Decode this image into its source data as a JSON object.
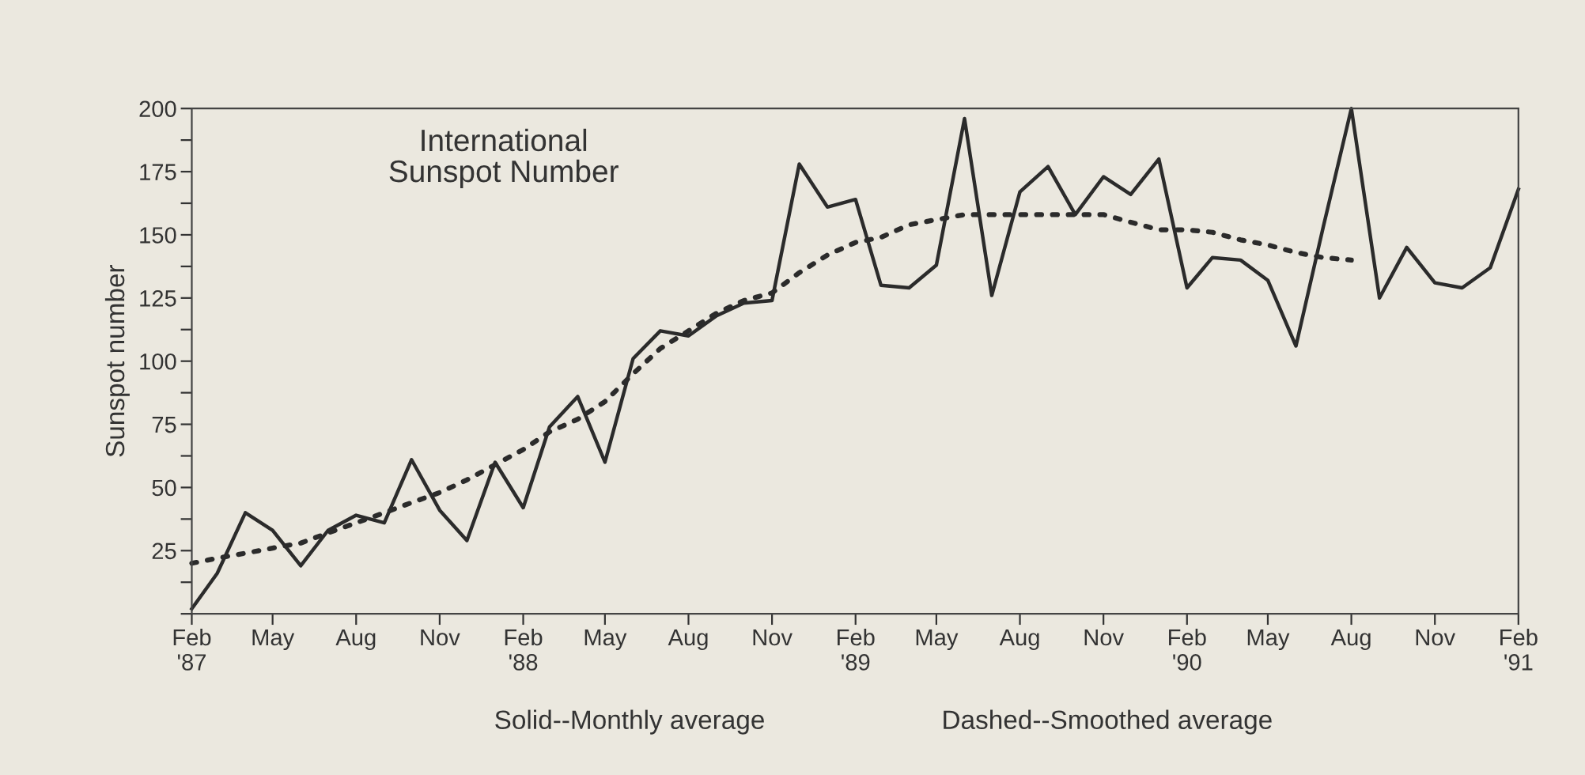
{
  "chart_data": {
    "type": "line",
    "annotations": [
      "International\nSunspot Number",
      "Solid--Monthly average",
      "Dashed--Smoothed average"
    ],
    "ylabel": "Sunspot number",
    "x": [
      "1987-02",
      "1987-03",
      "1987-04",
      "1987-05",
      "1987-06",
      "1987-07",
      "1987-08",
      "1987-09",
      "1987-10",
      "1987-11",
      "1987-12",
      "1988-01",
      "1988-02",
      "1988-03",
      "1988-04",
      "1988-05",
      "1988-06",
      "1988-07",
      "1988-08",
      "1988-09",
      "1988-10",
      "1988-11",
      "1988-12",
      "1989-01",
      "1989-02",
      "1989-03",
      "1989-04",
      "1989-05",
      "1989-06",
      "1989-07",
      "1989-08",
      "1989-09",
      "1989-10",
      "1989-11",
      "1989-12",
      "1990-01",
      "1990-02",
      "1990-03",
      "1990-04",
      "1990-05",
      "1990-06",
      "1990-07",
      "1990-08",
      "1990-09",
      "1990-10",
      "1990-11",
      "1990-12",
      "1991-01",
      "1991-02"
    ],
    "series": [
      {
        "color": "#2b2b2b",
        "line_style": "solid",
        "values": [
          2,
          16,
          40,
          33,
          19,
          33,
          39,
          36,
          61,
          41,
          29,
          60,
          42,
          74,
          86,
          60,
          101,
          112,
          110,
          118,
          123,
          124,
          178,
          161,
          164,
          130,
          129,
          138,
          196,
          126,
          167,
          177,
          158,
          173,
          166,
          180,
          129,
          141,
          140,
          132,
          106,
          153,
          200,
          125,
          145,
          131,
          129,
          137,
          168
        ]
      },
      {
        "color": "#2b2b2b",
        "line_style": "dotted",
        "values": [
          20,
          22,
          24,
          26,
          28,
          32,
          36,
          40,
          44,
          48,
          53,
          59,
          65,
          72,
          77,
          84,
          95,
          105,
          112,
          119,
          124,
          127,
          135,
          142,
          147,
          149,
          154,
          156,
          158,
          158,
          158,
          158,
          158,
          158,
          155,
          152,
          152,
          151,
          148,
          146,
          143,
          141,
          140,
          null,
          null,
          null,
          null,
          null,
          null
        ]
      }
    ],
    "xlim": [
      "1987-02",
      "1991-02"
    ],
    "xticks": [
      {
        "value": "1987-02",
        "label": "Feb\n'87"
      },
      {
        "value": "1987-05",
        "label": "May"
      },
      {
        "value": "1987-08",
        "label": "Aug"
      },
      {
        "value": "1987-11",
        "label": "Nov"
      },
      {
        "value": "1988-02",
        "label": "Feb\n'88"
      },
      {
        "value": "1988-05",
        "label": "May"
      },
      {
        "value": "1988-08",
        "label": "Aug"
      },
      {
        "value": "1988-11",
        "label": "Nov"
      },
      {
        "value": "1989-02",
        "label": "Feb\n'89"
      },
      {
        "value": "1989-05",
        "label": "May"
      },
      {
        "value": "1989-08",
        "label": "Aug"
      },
      {
        "value": "1989-11",
        "label": "Nov"
      },
      {
        "value": "1990-02",
        "label": "Feb\n'90"
      },
      {
        "value": "1990-05",
        "label": "May"
      },
      {
        "value": "1990-08",
        "label": "Aug"
      },
      {
        "value": "1990-11",
        "label": "Nov"
      },
      {
        "value": "1991-02",
        "label": "Feb\n'91"
      }
    ],
    "ylim": [
      0,
      200
    ],
    "yticks": [
      {
        "value": 0,
        "label": null
      },
      {
        "value": 12.5,
        "label": null
      },
      25,
      {
        "value": 37.5,
        "label": null
      },
      50,
      {
        "value": 62.5,
        "label": null
      },
      75,
      {
        "value": 87.5,
        "label": null
      },
      100,
      {
        "value": 112.5,
        "label": null
      },
      125,
      {
        "value": 137.5,
        "label": null
      },
      150,
      {
        "value": 162.5,
        "label": null
      },
      175,
      {
        "value": 187.5,
        "label": null
      },
      200
    ],
    "grid": false,
    "marker": "none"
  }
}
